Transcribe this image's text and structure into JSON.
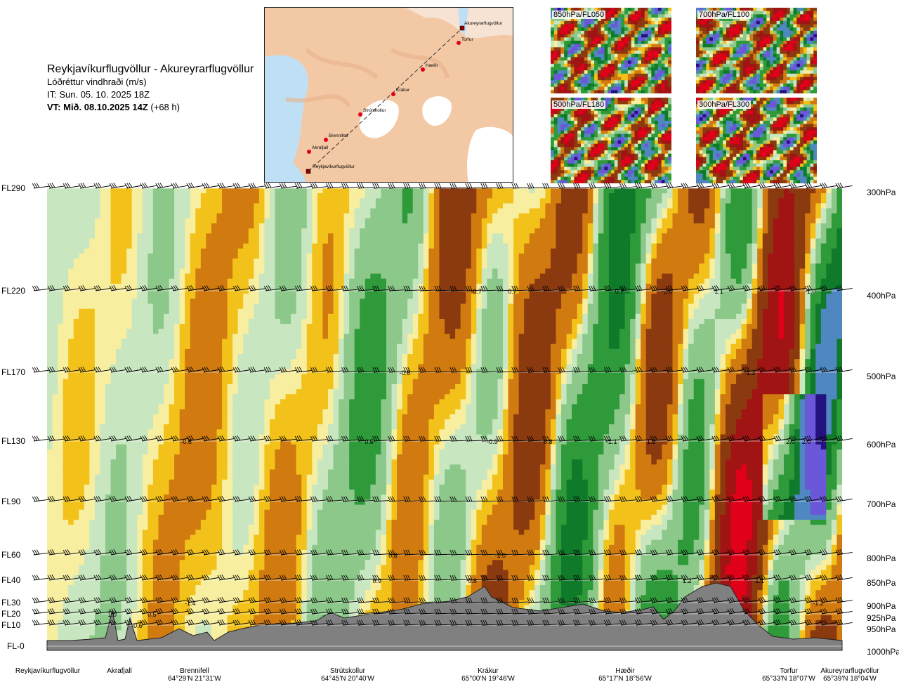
{
  "header": {
    "route": "Reykjavíkurflugvöllur - Akureyrarflugvöllur",
    "variable": "Lóðréttur vindhraði (m/s)",
    "issue": "IT: Sun. 05. 10. 2025 18Z",
    "valid_bold": "VT: Mið. 08.10.2025 14Z",
    "valid_rest": " (+68 h)"
  },
  "map": {
    "points": [
      "Akureyrarflugvöllur",
      "Torfur",
      "Hæðir",
      "Krákur",
      "Strútskollur",
      "Brennifell",
      "Akrafjall",
      "Reykjavíkurflugvöllur"
    ],
    "colors": {
      "land": "#f3c9a5",
      "water": "#bfe0f4",
      "ice": "#ffffff",
      "route": "#333333",
      "marker": "#e0001a"
    }
  },
  "thumbnails": [
    {
      "label": "850hPa/FL050"
    },
    {
      "label": "700hPa/FL100"
    },
    {
      "label": "500hPa/FL180"
    },
    {
      "label": "300hPa/FL300"
    }
  ],
  "chart_data": {
    "type": "heatmap",
    "title": "Lóðréttur vindhraði (m/s)",
    "flight_levels": [
      {
        "fl": "FL290",
        "hpa": "300hPa"
      },
      {
        "fl": "FL220",
        "hpa": "400hPa"
      },
      {
        "fl": "FL170",
        "hpa": "500hPa"
      },
      {
        "fl": "FL130",
        "hpa": "600hPa"
      },
      {
        "fl": "FL90",
        "hpa": "700hPa"
      },
      {
        "fl": "FL60",
        "hpa": "800hPa"
      },
      {
        "fl": "FL40",
        "hpa": "850hPa"
      },
      {
        "fl": "FL30",
        "hpa": "900hPa"
      },
      {
        "fl": "FL20",
        "hpa": "925hPa"
      },
      {
        "fl": "FL10",
        "hpa": "950hPa"
      },
      {
        "fl": "FL-0",
        "hpa": "1000hPa"
      }
    ],
    "stations": [
      {
        "name": "Reykjavíkurflugvöllur",
        "coord": ""
      },
      {
        "name": "Akrafjall",
        "coord": ""
      },
      {
        "name": "Brennifell",
        "coord": "64°29'N 21°31'W"
      },
      {
        "name": "Strútskollur",
        "coord": "64°45'N 20°40'W"
      },
      {
        "name": "Krákur",
        "coord": "65°00'N 19°46'W"
      },
      {
        "name": "Hæðir",
        "coord": "65°17'N 18°56'W"
      },
      {
        "name": "Torfur",
        "coord": "65°33'N 18°07'W"
      },
      {
        "name": "Akureyrarflugvöllur",
        "coord": "65°39'N 18°04'W"
      }
    ],
    "value_labels": [
      {
        "t": "-0.7",
        "x": 0.54,
        "fl": "FL220"
      },
      {
        "t": "0.7",
        "x": 0.585,
        "fl": "FL220"
      },
      {
        "t": "0.7",
        "x": 0.72,
        "fl": "FL220"
      },
      {
        "t": "-2.0",
        "x": 0.78,
        "fl": "FL220"
      },
      {
        "t": "1.1",
        "x": 0.845,
        "fl": "FL220"
      },
      {
        "t": "-1.0",
        "x": 0.96,
        "fl": "FL220"
      },
      {
        "t": "-0.6",
        "x": 0.45,
        "fl": "FL170"
      },
      {
        "t": "1.3",
        "x": 0.885,
        "fl": "FL170"
      },
      {
        "t": "-0.6",
        "x": 0.175,
        "fl": "FL130"
      },
      {
        "t": "0.6",
        "x": 0.405,
        "fl": "FL130"
      },
      {
        "t": "-0.9",
        "x": 0.56,
        "fl": "FL130"
      },
      {
        "t": "0.8",
        "x": 0.63,
        "fl": "FL130"
      },
      {
        "t": "-1.1",
        "x": 0.71,
        "fl": "FL130"
      },
      {
        "t": "1.2",
        "x": 0.76,
        "fl": "FL130"
      },
      {
        "t": "2.0",
        "x": 0.935,
        "fl": "FL130"
      },
      {
        "t": "2.0",
        "x": 0.955,
        "fl": "FL130"
      },
      {
        "t": "0.8",
        "x": 0.435,
        "fl": "FL60"
      },
      {
        "t": "-1.0",
        "x": 0.57,
        "fl": "FL60"
      },
      {
        "t": "0.9",
        "x": 0.415,
        "fl": "FL40"
      },
      {
        "t": "0.6",
        "x": 0.535,
        "fl": "FL40"
      },
      {
        "t": "1.2",
        "x": 0.805,
        "fl": "FL40"
      },
      {
        "t": "-1.1",
        "x": 0.895,
        "fl": "FL40"
      },
      {
        "t": "-1.4",
        "x": 0.18,
        "fl": "FL30"
      },
      {
        "t": "-1.2",
        "x": 0.97,
        "fl": "FL30"
      },
      {
        "t": "1.0",
        "x": 0.082,
        "fl": "FL20"
      },
      {
        "t": "0.5",
        "x": 0.132,
        "fl": "FL20"
      },
      {
        "t": "-0.6",
        "x": 0.113,
        "fl": "FL10"
      }
    ],
    "colorscale": [
      {
        "v": -2.0,
        "c": "#e0001a"
      },
      {
        "v": -1.5,
        "c": "#a01414"
      },
      {
        "v": -1.0,
        "c": "#8b3a0f"
      },
      {
        "v": -0.5,
        "c": "#d07a10"
      },
      {
        "v": -0.2,
        "c": "#f2c21a"
      },
      {
        "v": -0.05,
        "c": "#f7eea0"
      },
      {
        "v": 0.05,
        "c": "#c8e6c0"
      },
      {
        "v": 0.2,
        "c": "#8cc88a"
      },
      {
        "v": 0.5,
        "c": "#2e9a3a"
      },
      {
        "v": 0.9,
        "c": "#0f7a2a"
      },
      {
        "v": 1.2,
        "c": "#4f88c0"
      },
      {
        "v": 1.6,
        "c": "#6a58d8"
      },
      {
        "v": 2.2,
        "c": "#24127e"
      }
    ],
    "terrain_color": "#808080"
  }
}
